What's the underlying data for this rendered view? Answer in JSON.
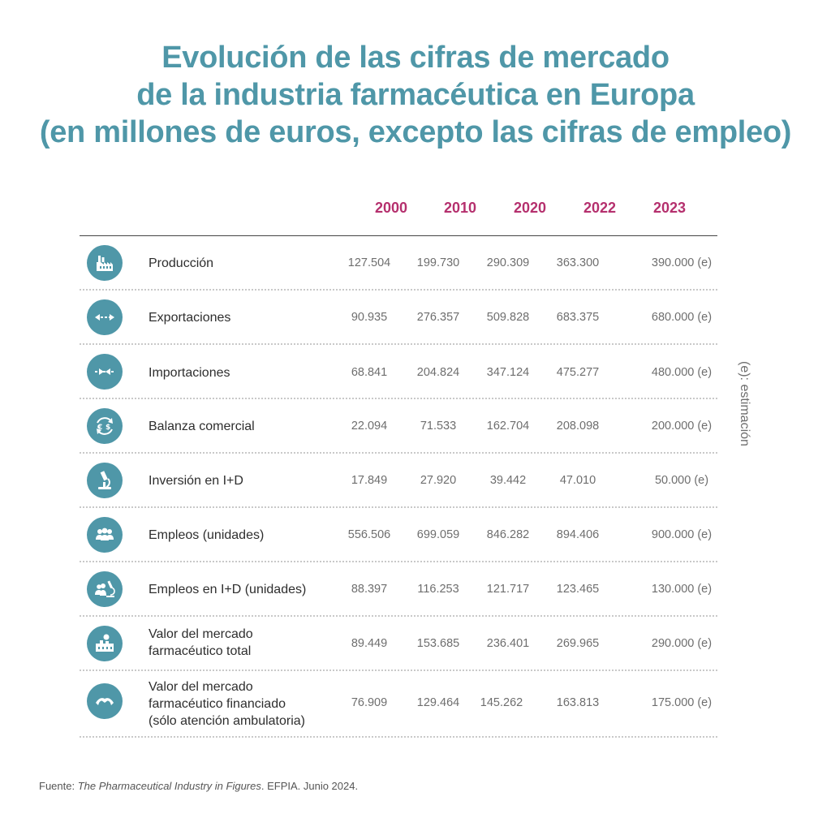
{
  "title": {
    "line1": "Evolución de las cifras de mercado",
    "line2": "de la industria farmacéutica en Europa",
    "line3": "(en millones de euros, excepto las cifras de empleo)"
  },
  "years": [
    "2000",
    "2010",
    "2020",
    "2022",
    "2023"
  ],
  "colors": {
    "title": "#4f97a8",
    "years": "#b5306e",
    "icon_bg": "#4f97a8"
  },
  "rows": [
    {
      "icon": "factory-icon",
      "label1": "Producción",
      "label2": "",
      "label3": "",
      "values": [
        "127.504",
        "199.730",
        "290.309",
        "363.300",
        "390.000 (e)"
      ]
    },
    {
      "icon": "export-arrows-icon",
      "label1": "Exportaciones",
      "label2": "",
      "label3": "",
      "values": [
        "90.935",
        "276.357",
        "509.828",
        "683.375",
        "680.000 (e)"
      ]
    },
    {
      "icon": "import-arrows-icon",
      "label1": "Importaciones",
      "label2": "",
      "label3": "",
      "values": [
        "68.841",
        "204.824",
        "347.124",
        "475.277",
        "480.000 (e)"
      ]
    },
    {
      "icon": "currency-exchange-icon",
      "label1": "Balanza comercial",
      "label2": "",
      "label3": "",
      "values": [
        "22.094",
        "71.533",
        "162.704",
        "208.098",
        "200.000 (e)"
      ]
    },
    {
      "icon": "microscope-icon",
      "label1": "Inversión en I+D",
      "label2": "",
      "label3": "",
      "values": [
        "17.849",
        "27.920",
        "39.442",
        "47.010",
        "50.000 (e)"
      ]
    },
    {
      "icon": "people-icon",
      "label1": "Empleos (unidades)",
      "label2": "",
      "label3": "",
      "values": [
        "556.506",
        "699.059",
        "846.282",
        "894.406",
        "900.000 (e)"
      ]
    },
    {
      "icon": "researchers-icon",
      "label1": "Empleos en I+D (unidades)",
      "label2": "",
      "label3": "",
      "values": [
        "88.397",
        "116.253",
        "121.717",
        "123.465",
        "130.000 (e)"
      ]
    },
    {
      "icon": "market-building-icon",
      "label1": "Valor del mercado",
      "label2": "farmacéutico total",
      "label3": "",
      "values": [
        "89.449",
        "153.685",
        "236.401",
        "269.965",
        "290.000 (e)"
      ]
    },
    {
      "icon": "hands-icon",
      "label1": "Valor del mercado",
      "label2": "farmacéutico financiado",
      "label3": "(sólo atención ambulatoria)",
      "values": [
        "76.909",
        "129.464",
        "145.262",
        "163.813",
        "175.000 (e)"
      ]
    }
  ],
  "note": "(e): estimación",
  "source": {
    "prefix": "Fuente: ",
    "italic": "The Pharmaceutical Industry in Figures",
    "suffix": ". EFPIA. Junio 2024."
  }
}
